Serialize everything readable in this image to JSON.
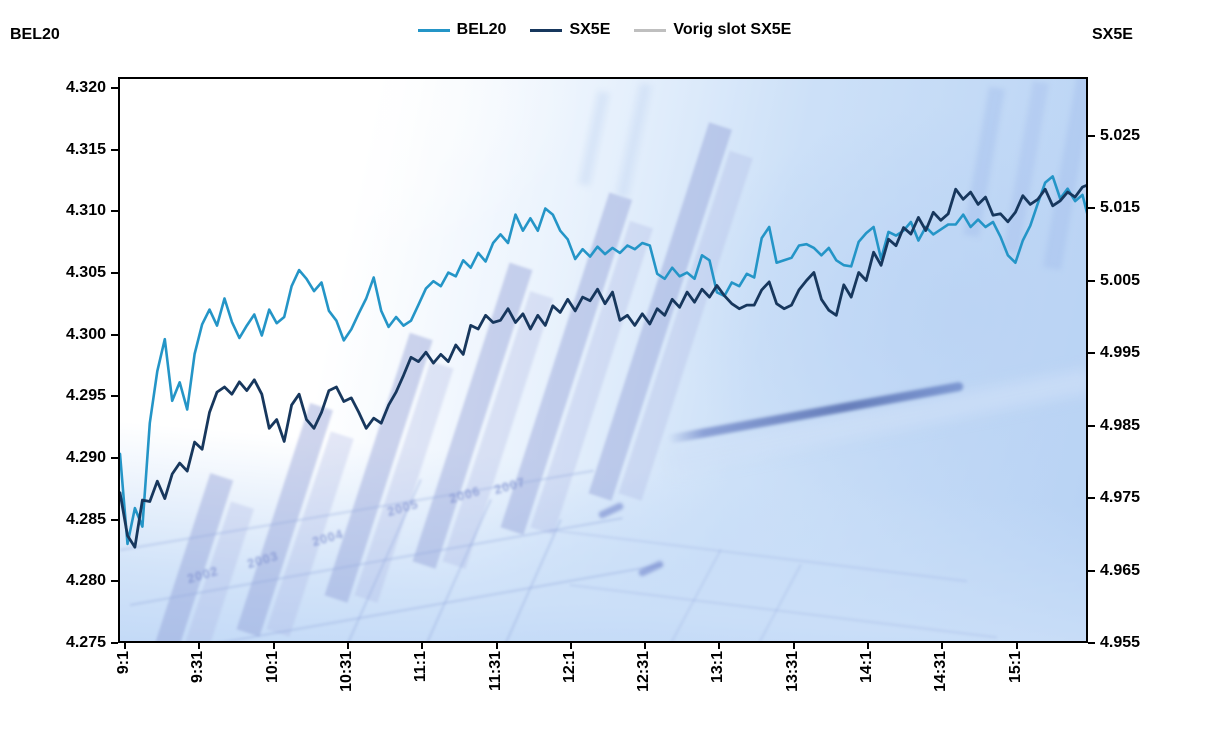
{
  "legend": {
    "items": [
      {
        "label": "BEL20",
        "color": "#2495C7"
      },
      {
        "label": "SX5E",
        "color": "#17375D"
      },
      {
        "label": "Vorig slot SX5E",
        "color": "#BFBFBF"
      }
    ]
  },
  "axes": {
    "left": {
      "title": "BEL20",
      "tick_labels": [
        "4.320",
        "4.315",
        "4.310",
        "4.305",
        "4.300",
        "4.295",
        "4.290",
        "4.285",
        "4.280",
        "4.275"
      ],
      "tick_values": [
        4.32,
        4.315,
        4.31,
        4.305,
        4.3,
        4.295,
        4.29,
        4.285,
        4.28,
        4.275
      ]
    },
    "right": {
      "title": "SX5E",
      "tick_labels": [
        "5.025",
        "5.015",
        "5.005",
        "4.995",
        "4.985",
        "4.975",
        "4.965",
        "4.955"
      ],
      "tick_values": [
        5.025,
        5.015,
        5.005,
        4.995,
        4.985,
        4.975,
        4.965,
        4.955
      ]
    },
    "x": {
      "tick_labels": [
        "9:1",
        "9:31",
        "10:1",
        "10:31",
        "11:1",
        "11:31",
        "12:1",
        "12:31",
        "13:1",
        "13:31",
        "14:1",
        "14:31",
        "15:1"
      ]
    }
  },
  "background": {
    "watermark_years": [
      "2002",
      "2003",
      "2004",
      "2005",
      "2006",
      "2007"
    ]
  },
  "chart_data": {
    "type": "line",
    "title": "",
    "legend_position": "top-center",
    "grid": false,
    "x_axis": {
      "unit": "time",
      "start": "9:00",
      "end": "15:30",
      "step_minutes": 3,
      "total_minutes": 390,
      "tick_labels": [
        "9:1",
        "9:31",
        "10:1",
        "10:31",
        "11:1",
        "11:31",
        "12:1",
        "12:31",
        "13:1",
        "13:31",
        "14:1",
        "14:31",
        "15:1"
      ],
      "tick_interval_minutes": 30
    },
    "left_axis": {
      "label": "BEL20",
      "ylim": [
        4.275,
        4.3209
      ],
      "tick_step": 0.005,
      "tick_format": "thousands shown with dot separator (4.320 = 4320 points)"
    },
    "right_axis": {
      "label": "SX5E",
      "ylim": [
        4.955,
        5.0331
      ],
      "tick_step": 0.01,
      "tick_format": "thousands shown with dot separator (5.025 = 5025 points)"
    },
    "series": [
      {
        "name": "BEL20",
        "axis": "left",
        "color": "#2495C7",
        "width": 2.6,
        "values": [
          4.2905,
          4.2832,
          4.2861,
          4.2846,
          4.293,
          4.2972,
          4.2998,
          4.2948,
          4.2963,
          4.2941,
          4.2986,
          4.301,
          4.3022,
          4.3009,
          4.3031,
          4.3012,
          4.2999,
          4.3009,
          4.3018,
          4.3001,
          4.3022,
          4.3011,
          4.3016,
          4.3041,
          4.3054,
          4.3047,
          4.3037,
          4.3044,
          4.3021,
          4.3013,
          4.2997,
          4.3006,
          4.3019,
          4.3031,
          4.3048,
          4.3021,
          4.3008,
          4.3016,
          4.3009,
          4.3013,
          4.3026,
          4.3039,
          4.3045,
          4.3041,
          4.3052,
          4.3049,
          4.3062,
          4.3056,
          4.3068,
          4.3061,
          4.3076,
          4.3083,
          4.3076,
          4.3099,
          4.3086,
          4.3096,
          4.3086,
          4.3104,
          4.3099,
          4.3086,
          4.3079,
          4.3063,
          4.3071,
          4.3065,
          4.3073,
          4.3067,
          4.3072,
          4.3068,
          4.3074,
          4.3071,
          4.3076,
          4.3074,
          4.3051,
          4.3047,
          4.3056,
          4.3049,
          4.3052,
          4.3047,
          4.3066,
          4.3062,
          4.3036,
          4.3033,
          4.3044,
          4.3041,
          4.3051,
          4.3048,
          4.308,
          4.3089,
          4.306,
          4.3062,
          4.3064,
          4.3074,
          4.3075,
          4.3072,
          4.3066,
          4.3072,
          4.3062,
          4.3058,
          4.3057,
          4.3077,
          4.3084,
          4.3089,
          4.3063,
          4.3085,
          4.3082,
          4.3086,
          4.3093,
          4.3078,
          4.3089,
          4.3083,
          4.3087,
          4.3091,
          4.3091,
          4.3099,
          4.3089,
          4.3095,
          4.3089,
          4.3093,
          4.3081,
          4.3066,
          4.306,
          4.3078,
          4.309,
          4.3108,
          4.3125,
          4.313,
          4.3112,
          4.312,
          4.311,
          4.3115,
          4.3091
        ]
      },
      {
        "name": "SX5E",
        "axis": "right",
        "color": "#17375D",
        "width": 2.8,
        "values": [
          4.976,
          4.9701,
          4.9685,
          4.975,
          4.9748,
          4.9776,
          4.9752,
          4.9786,
          4.9801,
          4.979,
          4.983,
          4.982,
          4.9871,
          4.9899,
          4.9906,
          4.9896,
          4.9913,
          4.9901,
          4.9916,
          4.9896,
          4.9849,
          4.9861,
          4.9831,
          4.9881,
          4.9896,
          4.9861,
          4.9849,
          4.9871,
          4.9901,
          4.9906,
          4.9886,
          4.9891,
          4.9871,
          4.9849,
          4.9863,
          4.9856,
          4.9881,
          4.9899,
          4.9922,
          4.9947,
          4.9941,
          4.9954,
          4.9939,
          4.9951,
          4.9941,
          4.9964,
          4.9951,
          4.9991,
          4.9986,
          5.0005,
          4.9995,
          4.9998,
          5.0014,
          4.9995,
          5.0007,
          4.9986,
          5.0005,
          4.9991,
          5.0018,
          5.0009,
          5.0027,
          5.0011,
          5.003,
          5.0025,
          5.0041,
          5.0021,
          5.0037,
          4.9998,
          5.0005,
          4.9991,
          5.0007,
          4.9993,
          5.0014,
          5.0005,
          5.0027,
          5.0016,
          5.0037,
          5.0023,
          5.0041,
          5.003,
          5.0046,
          5.0032,
          5.0021,
          5.0014,
          5.0019,
          5.0019,
          5.004,
          5.0051,
          5.0021,
          5.0014,
          5.0019,
          5.004,
          5.0053,
          5.0064,
          5.0027,
          5.0012,
          5.0005,
          5.0047,
          5.003,
          5.0064,
          5.0053,
          5.0092,
          5.0074,
          5.011,
          5.0101,
          5.0126,
          5.0117,
          5.014,
          5.0122,
          5.0147,
          5.0136,
          5.0145,
          5.0179,
          5.0165,
          5.0175,
          5.0158,
          5.0168,
          5.0143,
          5.0145,
          5.0134,
          5.0147,
          5.017,
          5.0158,
          5.0165,
          5.0179,
          5.0156,
          5.0163,
          5.0175,
          5.0168,
          5.0182,
          5.0186
        ]
      },
      {
        "name": "Vorig slot SX5E",
        "axis": "right",
        "color": "#BFBFBF",
        "width": 3,
        "values": [],
        "visible_in_plot": false
      }
    ]
  }
}
